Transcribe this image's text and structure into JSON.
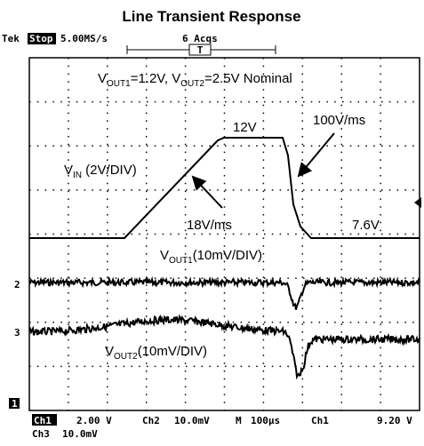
{
  "title": "Line Transient Response",
  "header": {
    "brand": "Tek",
    "state": "Stop",
    "rate": "5.00MS/s",
    "acqs": "6 Acqs",
    "trigger": "T"
  },
  "annotations": {
    "nominal": [
      "V",
      "OUT1",
      "=1.2V, V",
      "OUT2",
      "=2.5V Nominal"
    ],
    "peak": "12V",
    "fall_rate": "100V/ms",
    "vin": [
      "V",
      "IN",
      " (2V/DIV)"
    ],
    "rise_rate": "18V/ms",
    "base": "7.6V",
    "vout1": [
      "V",
      "OUT1",
      "(10mV/DIV)"
    ],
    "vout2": [
      "V",
      "OUT2",
      "(10mV/DIV)"
    ]
  },
  "markers": {
    "ch2": "2",
    "ch3": "3",
    "ch1": "1"
  },
  "footer": {
    "ch1": "Ch1",
    "ch1_scale": "2.00 V",
    "ch2": "Ch2",
    "ch2_scale": "10.0mV",
    "m": "M",
    "time": "100µs",
    "trig_ch": "Ch1",
    "trig_level": "9.20 V",
    "ch3": "Ch3",
    "ch3_scale": "10.0mV"
  }
}
